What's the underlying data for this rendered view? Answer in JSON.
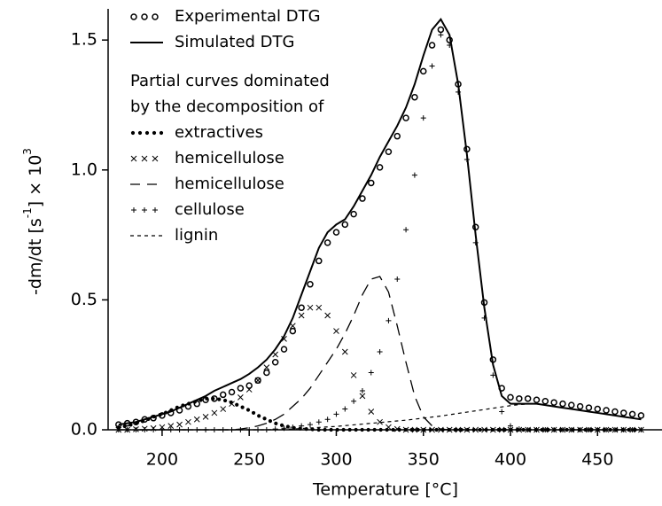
{
  "chart_data": {
    "type": "line",
    "xlabel": "Temperature  [°C]",
    "ylabel": [
      "-dm/dt  [s",
      "-1",
      "]  ×  10",
      "3"
    ],
    "legend_note": [
      "Partial curves dominated",
      "by the decomposition of"
    ],
    "legend_position": "upper left",
    "xlim": [
      169,
      487
    ],
    "ylim": [
      0,
      1.62
    ],
    "xticks": [
      200,
      250,
      300,
      350,
      400,
      450
    ],
    "yticks": [
      {
        "value": 0,
        "label": "0.0"
      },
      0.5,
      {
        "value": 1,
        "label": "1.0"
      },
      1.5
    ],
    "x": [
      175,
      180,
      185,
      190,
      195,
      200,
      205,
      210,
      215,
      220,
      225,
      230,
      235,
      240,
      245,
      250,
      255,
      260,
      265,
      270,
      275,
      280,
      285,
      290,
      295,
      300,
      305,
      310,
      315,
      320,
      325,
      330,
      335,
      340,
      345,
      350,
      355,
      360,
      365,
      370,
      375,
      380,
      385,
      390,
      395,
      400,
      405,
      410,
      415,
      420,
      425,
      430,
      435,
      440,
      445,
      450,
      455,
      460,
      465,
      470,
      475
    ],
    "series": [
      {
        "name": "Experimental DTG",
        "style": "circles",
        "color": "#000000",
        "legend_group": 0,
        "values": [
          0.02,
          0.025,
          0.03,
          0.04,
          0.045,
          0.055,
          0.065,
          0.075,
          0.09,
          0.1,
          0.115,
          0.12,
          0.135,
          0.145,
          0.16,
          0.17,
          0.19,
          0.22,
          0.26,
          0.31,
          0.38,
          0.47,
          0.56,
          0.65,
          0.72,
          0.76,
          0.79,
          0.83,
          0.89,
          0.95,
          1.01,
          1.07,
          1.13,
          1.2,
          1.28,
          1.38,
          1.48,
          1.54,
          1.5,
          1.33,
          1.08,
          0.78,
          0.49,
          0.27,
          0.16,
          0.125,
          0.12,
          0.12,
          0.115,
          0.11,
          0.105,
          0.1,
          0.095,
          0.09,
          0.085,
          0.08,
          0.075,
          0.07,
          0.065,
          0.06,
          0.055
        ]
      },
      {
        "name": "Simulated DTG",
        "style": "solid",
        "color": "#000000",
        "legend_group": 0,
        "values": [
          0.02,
          0.025,
          0.03,
          0.04,
          0.05,
          0.06,
          0.07,
          0.085,
          0.1,
          0.115,
          0.13,
          0.15,
          0.165,
          0.18,
          0.195,
          0.215,
          0.24,
          0.27,
          0.31,
          0.36,
          0.43,
          0.52,
          0.61,
          0.7,
          0.76,
          0.79,
          0.81,
          0.86,
          0.92,
          0.98,
          1.05,
          1.11,
          1.17,
          1.24,
          1.33,
          1.44,
          1.54,
          1.58,
          1.52,
          1.33,
          1.06,
          0.75,
          0.47,
          0.25,
          0.13,
          0.1,
          0.1,
          0.1,
          0.1,
          0.095,
          0.09,
          0.085,
          0.08,
          0.075,
          0.07,
          0.065,
          0.06,
          0.055,
          0.05,
          0.045,
          0.04
        ]
      },
      {
        "name": "extractives",
        "style": "dots",
        "color": "#000000",
        "legend_group": 1,
        "values": [
          0.01,
          0.015,
          0.025,
          0.035,
          0.05,
          0.06,
          0.075,
          0.09,
          0.1,
          0.11,
          0.12,
          0.12,
          0.115,
          0.105,
          0.09,
          0.075,
          0.055,
          0.04,
          0.025,
          0.015,
          0.008,
          0.004,
          0.002,
          0,
          0,
          0,
          0,
          0,
          0,
          0,
          0,
          0,
          0,
          0,
          0,
          0,
          0,
          0,
          0,
          0,
          0,
          0,
          0,
          0,
          0,
          0,
          0,
          0,
          0,
          0,
          0,
          0,
          0,
          0,
          0,
          0,
          0,
          0,
          0,
          0,
          0
        ]
      },
      {
        "name": "hemicellulose",
        "style": "crosses",
        "color": "#000000",
        "legend_group": 1,
        "values": [
          0,
          0,
          0.002,
          0.004,
          0.006,
          0.01,
          0.015,
          0.02,
          0.03,
          0.04,
          0.05,
          0.065,
          0.08,
          0.1,
          0.125,
          0.155,
          0.19,
          0.24,
          0.29,
          0.35,
          0.4,
          0.44,
          0.47,
          0.47,
          0.44,
          0.38,
          0.3,
          0.21,
          0.13,
          0.07,
          0.03,
          0.01,
          0.003,
          0,
          0,
          0,
          0,
          0,
          0,
          0,
          0,
          0,
          0,
          0,
          0,
          0,
          0,
          0,
          0,
          0,
          0,
          0,
          0,
          0,
          0,
          0,
          0,
          0,
          0,
          0,
          0
        ]
      },
      {
        "name": "hemicellulose",
        "style": "dashed",
        "color": "#000000",
        "legend_group": 1,
        "values": [
          0,
          0,
          0,
          0,
          0,
          0,
          0,
          0,
          0,
          0,
          0,
          0,
          0,
          0,
          0.003,
          0.008,
          0.015,
          0.025,
          0.04,
          0.06,
          0.09,
          0.12,
          0.16,
          0.21,
          0.26,
          0.31,
          0.37,
          0.44,
          0.52,
          0.58,
          0.59,
          0.53,
          0.4,
          0.26,
          0.13,
          0.05,
          0.015,
          0.003,
          0,
          0,
          0,
          0,
          0,
          0,
          0,
          0,
          0,
          0,
          0,
          0,
          0,
          0,
          0,
          0,
          0,
          0,
          0,
          0,
          0,
          0,
          0
        ]
      },
      {
        "name": "cellulose",
        "style": "plus",
        "color": "#000000",
        "legend_group": 1,
        "values": [
          0,
          0,
          0,
          0,
          0,
          0,
          0,
          0,
          0,
          0,
          0,
          0,
          0,
          0,
          0,
          0,
          0,
          0,
          0.003,
          0.006,
          0.01,
          0.015,
          0.02,
          0.03,
          0.04,
          0.06,
          0.08,
          0.11,
          0.15,
          0.22,
          0.3,
          0.42,
          0.58,
          0.77,
          0.98,
          1.2,
          1.4,
          1.52,
          1.48,
          1.3,
          1.04,
          0.72,
          0.43,
          0.21,
          0.07,
          0.015,
          0.003,
          0,
          0,
          0,
          0,
          0,
          0,
          0,
          0,
          0,
          0,
          0,
          0,
          0,
          0
        ]
      },
      {
        "name": "lignin",
        "style": "short-dashed",
        "color": "#000000",
        "legend_group": 1,
        "values": [
          0,
          0,
          0,
          0,
          0,
          0,
          0,
          0,
          0,
          0,
          0,
          0,
          0,
          0,
          0,
          0,
          0,
          0,
          0.001,
          0.002,
          0.003,
          0.005,
          0.007,
          0.009,
          0.011,
          0.013,
          0.016,
          0.019,
          0.022,
          0.025,
          0.028,
          0.031,
          0.034,
          0.037,
          0.041,
          0.045,
          0.049,
          0.053,
          0.058,
          0.063,
          0.068,
          0.073,
          0.078,
          0.083,
          0.088,
          0.093,
          0.097,
          0.099,
          0.1,
          0.095,
          0.09,
          0.085,
          0.08,
          0.075,
          0.07,
          0.065,
          0.06,
          0.055,
          0.05,
          0.045,
          0.04
        ]
      }
    ]
  }
}
